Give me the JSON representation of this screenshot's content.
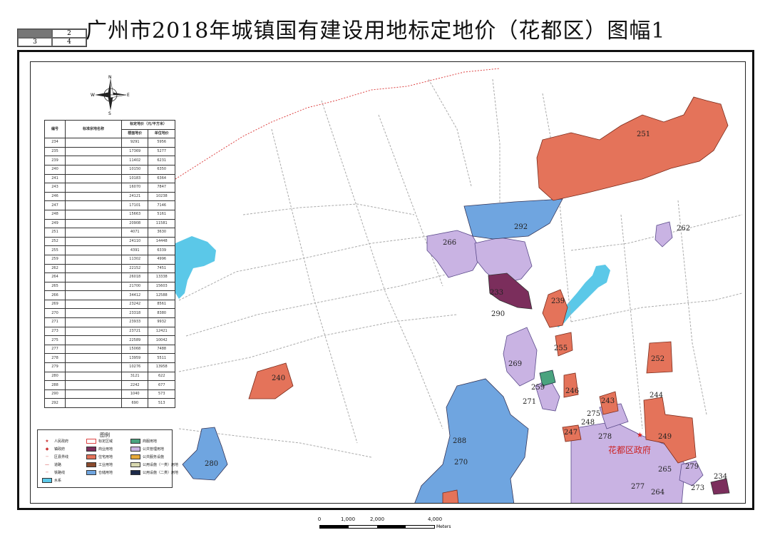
{
  "title": "广州市2018年城镇国有建设用地标定地价（花都区）图幅1",
  "index_grid": {
    "cells": [
      "",
      "2",
      "3",
      "4"
    ]
  },
  "compass": {
    "n": "N",
    "s": "S",
    "e": "E",
    "w": "W"
  },
  "table": {
    "headers": {
      "no": "编号",
      "name": "标准宗地名称",
      "price": "标定地价（元/平方米）",
      "sub1": "楼面地价",
      "sub2": "单位地价"
    },
    "rows": [
      [
        "234",
        "",
        "9291",
        "5956"
      ],
      [
        "235",
        "",
        "17369",
        "5277"
      ],
      [
        "239",
        "",
        "11402",
        "6231"
      ],
      [
        "240",
        "",
        "10150",
        "6350"
      ],
      [
        "241",
        "",
        "10183",
        "6364"
      ],
      [
        "243",
        "",
        "16070",
        "7847"
      ],
      [
        "246",
        "",
        "24121",
        "10238"
      ],
      [
        "247",
        "",
        "17101",
        "7146"
      ],
      [
        "248",
        "",
        "15663",
        "5161"
      ],
      [
        "249",
        "",
        "20908",
        "11581"
      ],
      [
        "251",
        "",
        "4071",
        "3630"
      ],
      [
        "252",
        "",
        "24110",
        "14448"
      ],
      [
        "255",
        "",
        "4391",
        "6339"
      ],
      [
        "259",
        "",
        "11302",
        "4996"
      ],
      [
        "262",
        "",
        "22152",
        "7451"
      ],
      [
        "264",
        "",
        "26018",
        "13338"
      ],
      [
        "265",
        "",
        "21700",
        "15603"
      ],
      [
        "266",
        "",
        "34412",
        "12588"
      ],
      [
        "269",
        "",
        "23242",
        "8561"
      ],
      [
        "270",
        "",
        "23318",
        "8380"
      ],
      [
        "271",
        "",
        "23933",
        "9932"
      ],
      [
        "273",
        "",
        "23721",
        "12421"
      ],
      [
        "275",
        "",
        "22589",
        "10042"
      ],
      [
        "277",
        "",
        "15068",
        "7488"
      ],
      [
        "278",
        "",
        "13959",
        "5511"
      ],
      [
        "279",
        "",
        "10276",
        "13958"
      ],
      [
        "280",
        "",
        "3121",
        "622"
      ],
      [
        "288",
        "",
        "2242",
        "677"
      ],
      [
        "290",
        "",
        "1040",
        "573"
      ],
      [
        "292",
        "",
        "690",
        "513"
      ]
    ]
  },
  "labels": [
    {
      "id": "251",
      "text": "251"
    },
    {
      "id": "262",
      "text": "262"
    },
    {
      "id": "292",
      "text": "292"
    },
    {
      "id": "266",
      "text": "266"
    },
    {
      "id": "233",
      "text": "233"
    },
    {
      "id": "239",
      "text": "239"
    },
    {
      "id": "290",
      "text": "290"
    },
    {
      "id": "255",
      "text": "255"
    },
    {
      "id": "252",
      "text": "252"
    },
    {
      "id": "269",
      "text": "269"
    },
    {
      "id": "259",
      "text": "259"
    },
    {
      "id": "246",
      "text": "246"
    },
    {
      "id": "271",
      "text": "271"
    },
    {
      "id": "240",
      "text": "240"
    },
    {
      "id": "244",
      "text": "244"
    },
    {
      "id": "243",
      "text": "243"
    },
    {
      "id": "275",
      "text": "275"
    },
    {
      "id": "248",
      "text": "248"
    },
    {
      "id": "247",
      "text": "247"
    },
    {
      "id": "278",
      "text": "278"
    },
    {
      "id": "249",
      "text": "249"
    },
    {
      "id": "288",
      "text": "288"
    },
    {
      "id": "270",
      "text": "270"
    },
    {
      "id": "280",
      "text": "280"
    },
    {
      "id": "265",
      "text": "265"
    },
    {
      "id": "279",
      "text": "279"
    },
    {
      "id": "234",
      "text": "234"
    },
    {
      "id": "277",
      "text": "277"
    },
    {
      "id": "264",
      "text": "264"
    },
    {
      "id": "273",
      "text": "273"
    },
    {
      "id": "gov",
      "text": "花都区政府"
    }
  ],
  "legend": {
    "title": "图例",
    "items": [
      {
        "label": "人民政府",
        "kind": "sym",
        "glyph": "★"
      },
      {
        "label": "标定区域",
        "kind": "swatch",
        "color": "#ffffff",
        "border": "#d44"
      },
      {
        "label": "商服用地",
        "kind": "swatch",
        "color": "#4aa37f"
      },
      {
        "label": "镇政府",
        "kind": "sym",
        "glyph": "◆"
      },
      {
        "label": "商业用地",
        "kind": "swatch",
        "color": "#7b2e5c"
      },
      {
        "label": "公共管理用地",
        "kind": "swatch",
        "color": "#c9b3e3"
      },
      {
        "label": "区县界线",
        "kind": "sym",
        "glyph": "┄"
      },
      {
        "label": "住宅用地",
        "kind": "swatch",
        "color": "#e4735a"
      },
      {
        "label": "公共服务设施",
        "kind": "swatch",
        "color": "#e6a93a"
      },
      {
        "label": "道路",
        "kind": "sym",
        "glyph": "—"
      },
      {
        "label": "工业用地",
        "kind": "swatch",
        "color": "#8a4a2d"
      },
      {
        "label": "公用设施（一类）用地",
        "kind": "swatch",
        "color": "#d8d8b0"
      },
      {
        "label": "铁路线",
        "kind": "sym",
        "glyph": "╌"
      },
      {
        "label": "仓储用地",
        "kind": "swatch",
        "color": "#6fa5e0"
      },
      {
        "label": "公用设施（二类）用地",
        "kind": "swatch",
        "color": "#1c2a4a"
      },
      {
        "label": "水系",
        "kind": "swatch",
        "color": "#5bc8e8"
      }
    ]
  },
  "scale": {
    "ticks": [
      "0",
      "1,000",
      "2,000",
      "4,000"
    ],
    "unit": "Meters"
  },
  "colors": {
    "residential": "#e4735a",
    "commercial": "#6fa5e0",
    "public": "#c9b3e3",
    "dark_commercial": "#7b2e5c",
    "water": "#5bc8e8",
    "green": "#4aa37f",
    "boundary": "#d44"
  }
}
